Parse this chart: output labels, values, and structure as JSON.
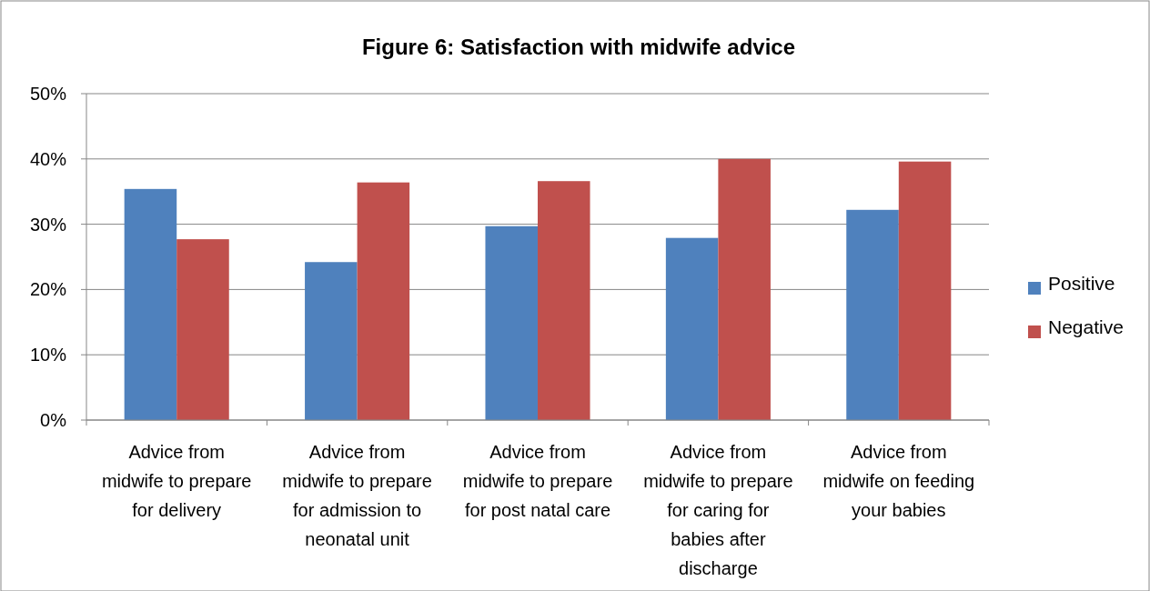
{
  "chart_data": {
    "type": "bar",
    "title": "Figure 6: Satisfaction with midwife advice",
    "categories": [
      "Advice from midwife to prepare for delivery",
      "Advice from midwife to prepare for admission to neonatal unit",
      "Advice from midwife to prepare for post natal care",
      "Advice from midwife to prepare for caring for babies after discharge",
      "Advice from midwife on feeding your babies"
    ],
    "series": [
      {
        "name": "Positive",
        "color": "#4f81bd",
        "values": [
          35.4,
          24.2,
          29.7,
          27.9,
          32.2
        ]
      },
      {
        "name": "Negative",
        "color": "#c0504d",
        "values": [
          27.7,
          36.4,
          36.6,
          40.0,
          39.6
        ]
      }
    ],
    "ylim": [
      0,
      50
    ],
    "yticks": [
      {
        "value": 0,
        "label": "0%"
      },
      {
        "value": 10,
        "label": "10%"
      },
      {
        "value": 20,
        "label": "20%"
      },
      {
        "value": 30,
        "label": "30%"
      },
      {
        "value": 40,
        "label": "40%"
      },
      {
        "value": 50,
        "label": "50%"
      }
    ],
    "grid": "y",
    "legend": "right"
  }
}
